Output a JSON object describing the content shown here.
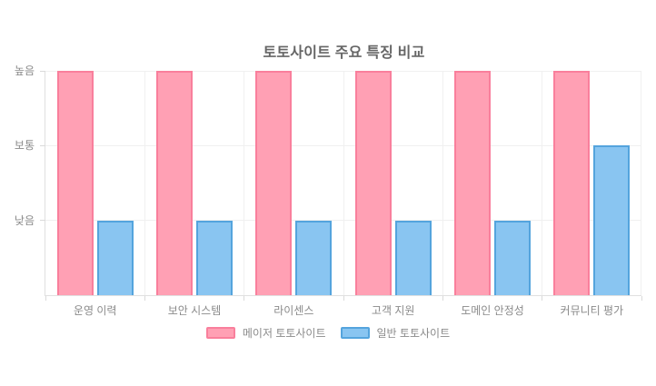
{
  "chart_data": {
    "type": "bar",
    "title": "토토사이트 주요 특징 비교",
    "categories": [
      "운영 이력",
      "보안 시스템",
      "라이센스",
      "고객 지원",
      "도메인 안정성",
      "커뮤니티 평가"
    ],
    "series": [
      {
        "name": "메이저 토토사이트",
        "values": [
          3,
          3,
          3,
          3,
          3,
          3
        ],
        "fill_color": "#ffa0b4",
        "border_color": "#f97f9c"
      },
      {
        "name": "일반 토토사이트",
        "values": [
          1,
          1,
          1,
          1,
          1,
          2
        ],
        "fill_color": "#89c5f1",
        "border_color": "#54a4dd"
      }
    ],
    "y_ticks": [
      {
        "label": "높음",
        "value": 3
      },
      {
        "label": "보통",
        "value": 2
      },
      {
        "label": "낮음",
        "value": 1
      }
    ],
    "ylim": [
      0,
      3
    ],
    "grid": true,
    "legend_position": "bottom",
    "colors": {
      "grid": "#f0f0f0",
      "axis": "#e0e0e0",
      "tick": "#dadada",
      "label_text": "#8a8a8a",
      "title_text": "#666666",
      "background": "#ffffff"
    }
  }
}
